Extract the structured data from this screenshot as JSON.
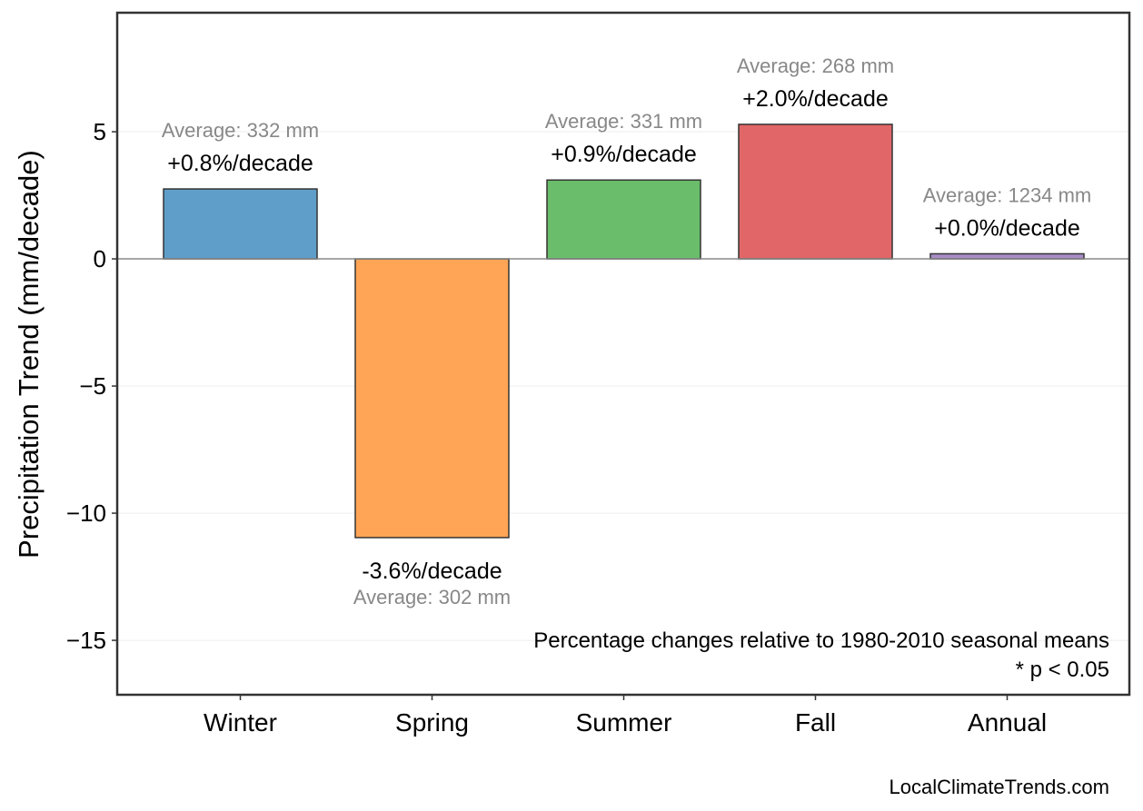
{
  "chart_data": {
    "type": "bar",
    "title": "",
    "xlabel": "",
    "ylabel": "Precipitation Trend (mm/decade)",
    "categories": [
      "Winter",
      "Spring",
      "Summer",
      "Fall",
      "Annual"
    ],
    "values": [
      2.75,
      -10.96,
      3.1,
      5.29,
      0.2
    ],
    "pct_labels": [
      "+0.8%/decade",
      "-3.6%/decade",
      "+0.9%/decade",
      "+2.0%/decade",
      "+0.0%/decade"
    ],
    "avg_labels": [
      "Average: 332 mm",
      "Average: 302 mm",
      "Average: 331 mm",
      "Average: 268 mm",
      "Average: 1234 mm"
    ],
    "colors": [
      "#5f9ec9",
      "#ffa555",
      "#6abd6a",
      "#e16667",
      "#a98dc7"
    ],
    "ylim": [
      -17.14,
      9.68
    ],
    "yticks": [
      5,
      0,
      -5,
      -10,
      -15
    ],
    "ytick_labels": [
      "5",
      "0",
      "−5",
      "−10",
      "−15"
    ],
    "grid": true,
    "annotation_lines": [
      "Percentage changes relative to 1980-2010 seasonal means",
      "* p < 0.05"
    ],
    "credit": "LocalClimateTrends.com"
  }
}
